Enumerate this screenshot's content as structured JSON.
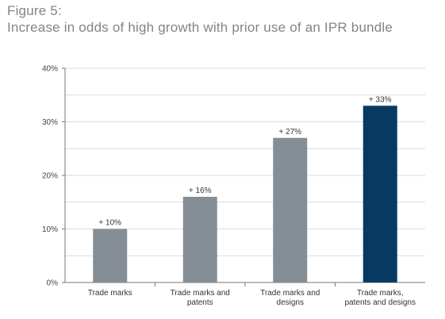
{
  "figure": {
    "label": "Figure 5:",
    "title": "Increase in odds of high growth with prior use of an IPR bundle"
  },
  "chart_data": {
    "type": "bar",
    "categories": [
      [
        "Trade marks"
      ],
      [
        "Trade marks and",
        "patents"
      ],
      [
        "Trade marks and",
        "designs"
      ],
      [
        "Trade marks,",
        "patents and designs"
      ]
    ],
    "values": [
      10,
      16,
      27,
      33
    ],
    "data_labels": [
      "+ 10%",
      "+ 16%",
      "+ 27%",
      "+ 33%"
    ],
    "ylim": [
      0,
      40
    ],
    "yticks": [
      0,
      10,
      20,
      30,
      40
    ],
    "ytick_labels": [
      "0%",
      "10%",
      "20%",
      "30%",
      "40%"
    ],
    "grid": true,
    "colors": {
      "default_bar": "#858d95",
      "highlight_bar": "#073a63",
      "grid": "#cfcfcf",
      "axis": "#777777"
    },
    "highlight_index": 3
  }
}
